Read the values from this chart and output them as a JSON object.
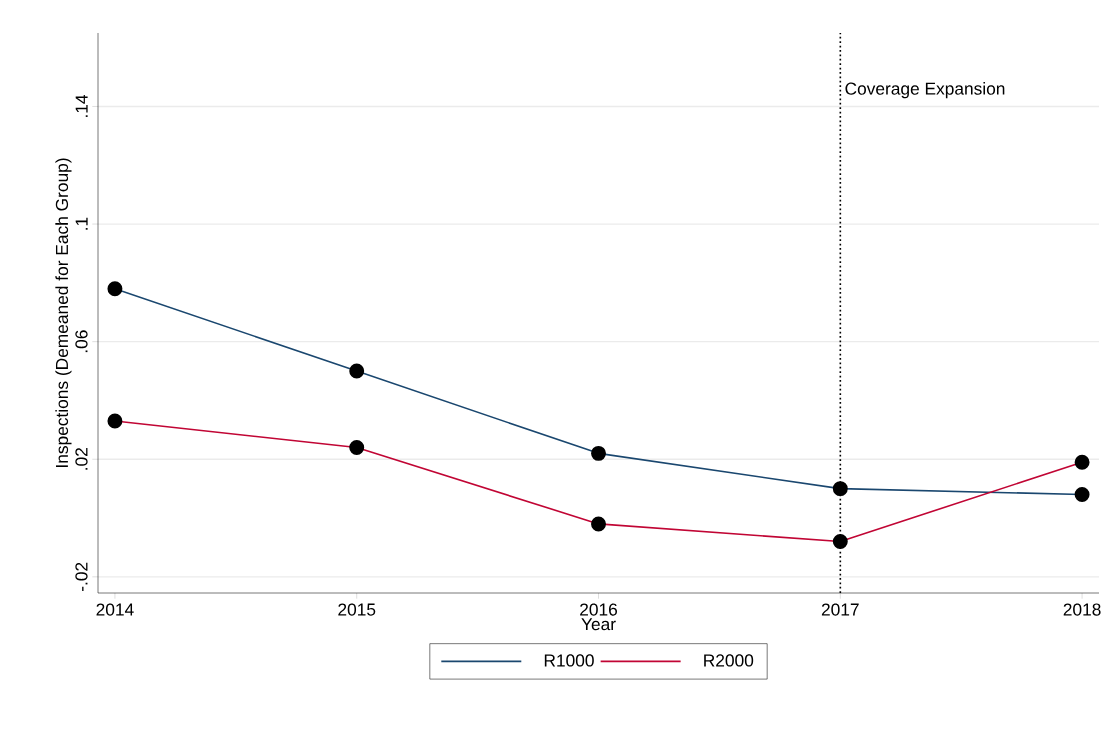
{
  "chart_data": {
    "type": "line",
    "x": [
      2014,
      2015,
      2016,
      2017,
      2018
    ],
    "series": [
      {
        "name": "R1000",
        "color": "#1a476f",
        "values": [
          0.078,
          0.05,
          0.022,
          0.01,
          0.008
        ]
      },
      {
        "name": "R2000",
        "color": "#c10534",
        "values": [
          0.033,
          0.024,
          -0.002,
          -0.008,
          0.019
        ]
      }
    ],
    "xlabel": "Year",
    "ylabel": "Inspections (Demeaned for Each Group)",
    "xlim": [
      2013.93,
      2018.07
    ],
    "xticks": [
      2014,
      2015,
      2016,
      2017,
      2018
    ],
    "ylim": [
      -0.0255,
      0.165
    ],
    "yticks": [
      {
        "value": -0.02,
        "label": "-.02"
      },
      {
        "value": 0.02,
        "label": ".02"
      },
      {
        "value": 0.06,
        "label": ".06"
      },
      {
        "value": 0.1,
        "label": ".1"
      },
      {
        "value": 0.14,
        "label": ".14"
      }
    ],
    "grid": "y",
    "legend": "bottom",
    "marker": "circle",
    "line_style": "solid",
    "ref_lines": [
      {
        "axis": "x",
        "value": 2017,
        "label": "Coverage Expansion",
        "line_style": "dotted",
        "color": "#000000"
      }
    ]
  }
}
